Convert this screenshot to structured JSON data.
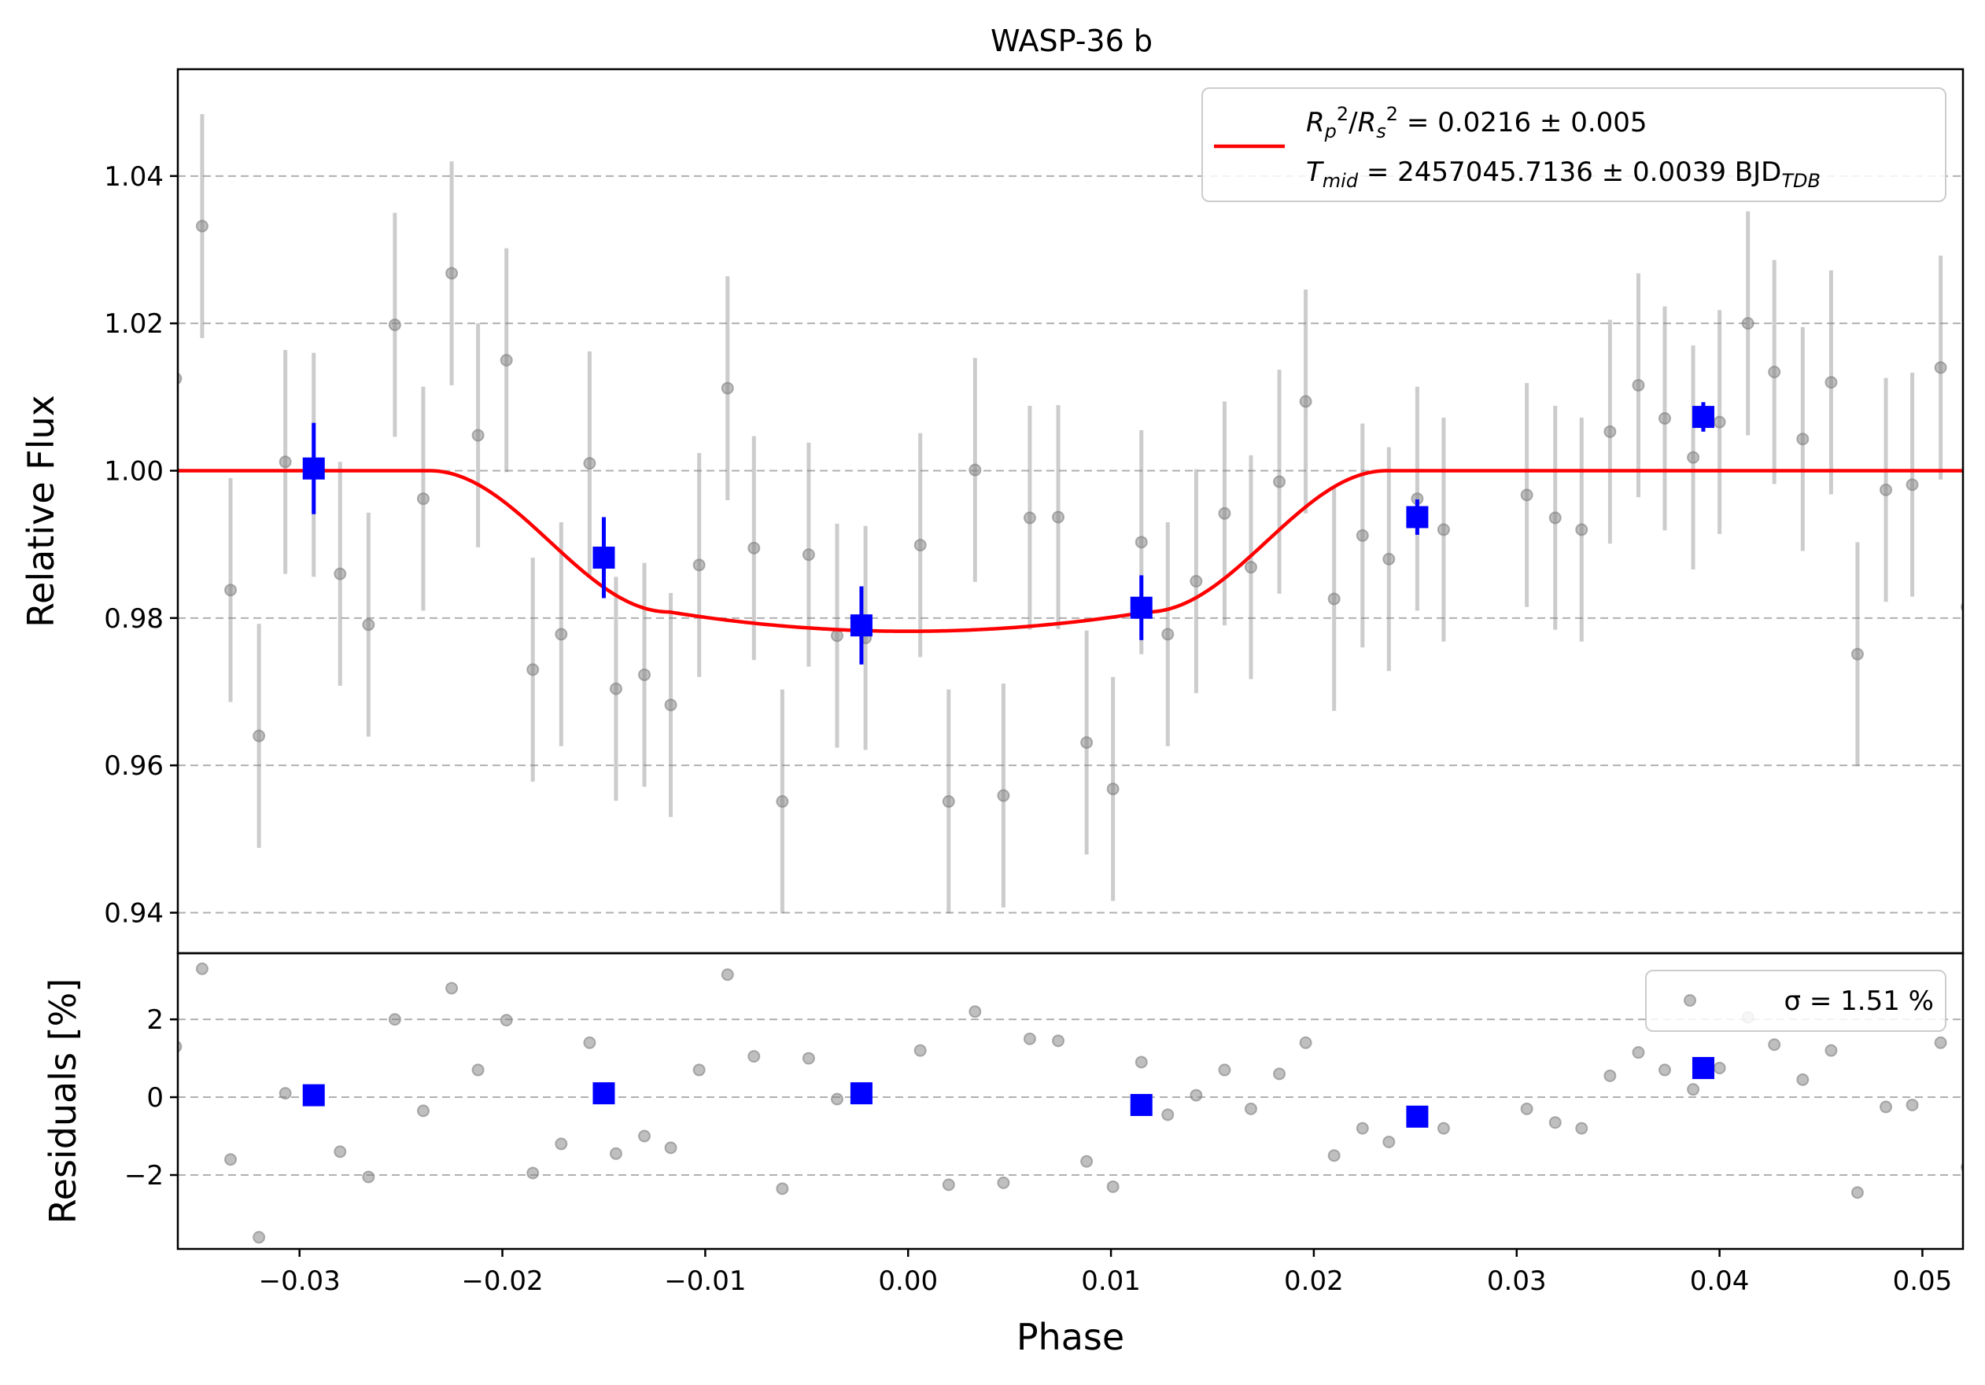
{
  "chart_data": [
    {
      "type": "scatter",
      "panel": "main",
      "title": "WASP-36 b",
      "ylabel": "Relative Flux",
      "xlim": [
        -0.036,
        0.052
      ],
      "ylim": [
        0.9345,
        1.0545
      ],
      "yticks": [
        0.94,
        0.96,
        0.98,
        1.0,
        1.02,
        1.04
      ],
      "ytick_labels": [
        "0.94",
        "0.96",
        "0.98",
        "1.00",
        "1.02",
        "1.04"
      ],
      "grid": "y dashed",
      "legend": {
        "placement": "top-right",
        "entries": [
          {
            "series": "model",
            "line1": "R_p^2/R_s^2 = 0.0216 ± 0.005",
            "line2": "T_mid = 2457045.7136 ± 0.0039 BJD_TDB"
          }
        ]
      },
      "model": {
        "color": "#ff0000",
        "depth": 0.0216,
        "t14": 0.0472,
        "t23": 0.0235,
        "baseline": 1.0,
        "min_flux": 0.9782
      },
      "raw_data": {
        "color": "#808080",
        "yerr": 0.0152,
        "points": [
          [
            -0.0361,
            1.0125
          ],
          [
            -0.0348,
            1.0332
          ],
          [
            -0.0334,
            0.9838
          ],
          [
            -0.032,
            0.964
          ],
          [
            -0.0307,
            1.0012
          ],
          [
            -0.0293,
            1.0008
          ],
          [
            -0.028,
            0.986
          ],
          [
            -0.0266,
            0.9791
          ],
          [
            -0.0253,
            1.0198
          ],
          [
            -0.0239,
            0.9962
          ],
          [
            -0.0225,
            1.0268
          ],
          [
            -0.0212,
            1.0048
          ],
          [
            -0.0198,
            1.015
          ],
          [
            -0.0185,
            0.973
          ],
          [
            -0.0171,
            0.9778
          ],
          [
            -0.0157,
            1.001
          ],
          [
            -0.0144,
            0.9704
          ],
          [
            -0.013,
            0.9723
          ],
          [
            -0.0117,
            0.9682
          ],
          [
            -0.0103,
            0.9872
          ],
          [
            -0.0089,
            1.0112
          ],
          [
            -0.0076,
            0.9895
          ],
          [
            -0.0062,
            0.9551
          ],
          [
            -0.0049,
            0.9886
          ],
          [
            -0.0035,
            0.9776
          ],
          [
            -0.0021,
            0.9773
          ],
          [
            0.0006,
            0.9899
          ],
          [
            0.002,
            0.9551
          ],
          [
            0.0033,
            1.0001
          ],
          [
            0.0047,
            0.9559
          ],
          [
            0.006,
            0.9936
          ],
          [
            0.0074,
            0.9937
          ],
          [
            0.0088,
            0.9631
          ],
          [
            0.0101,
            0.9568
          ],
          [
            0.0115,
            0.9903
          ],
          [
            0.0128,
            0.9778
          ],
          [
            0.0142,
            0.985
          ],
          [
            0.0156,
            0.9942
          ],
          [
            0.0169,
            0.9869
          ],
          [
            0.0183,
            0.9985
          ],
          [
            0.0196,
            1.0094
          ],
          [
            0.021,
            0.9826
          ],
          [
            0.0224,
            0.9912
          ],
          [
            0.0237,
            0.988
          ],
          [
            0.0251,
            0.9962
          ],
          [
            0.0264,
            0.992
          ],
          [
            0.0305,
            0.9967
          ],
          [
            0.0319,
            0.9936
          ],
          [
            0.0332,
            0.992
          ],
          [
            0.0346,
            1.0053
          ],
          [
            0.036,
            1.0116
          ],
          [
            0.0373,
            1.0071
          ],
          [
            0.0387,
            1.0018
          ],
          [
            0.04,
            1.0066
          ],
          [
            0.0414,
            1.02
          ],
          [
            0.0427,
            1.0134
          ],
          [
            0.0441,
            1.0043
          ],
          [
            0.0455,
            1.012
          ],
          [
            0.0468,
            0.9751
          ],
          [
            0.0482,
            0.9974
          ],
          [
            0.0495,
            0.9981
          ],
          [
            0.0509,
            1.014
          ],
          [
            0.0522,
            0.9815
          ]
        ]
      },
      "binned_data": {
        "color": "#0000ff",
        "points": [
          [
            -0.0293,
            1.0003,
            0.0062
          ],
          [
            -0.015,
            0.9882,
            0.0055
          ],
          [
            -0.0023,
            0.979,
            0.0053
          ],
          [
            0.0115,
            0.9814,
            0.0044
          ],
          [
            0.0251,
            0.9937,
            0.0024
          ],
          [
            0.0392,
            1.0073,
            0.002
          ]
        ]
      }
    },
    {
      "type": "scatter",
      "panel": "residuals",
      "xlabel": "Phase",
      "ylabel": "Residuals [%]",
      "xlim": [
        -0.036,
        0.052
      ],
      "ylim": [
        -3.9,
        3.7
      ],
      "xticks": [
        -0.03,
        -0.02,
        -0.01,
        0.0,
        0.01,
        0.02,
        0.03,
        0.04,
        0.05
      ],
      "xtick_labels": [
        "−0.03",
        "−0.02",
        "−0.01",
        "0.00",
        "0.01",
        "0.02",
        "0.03",
        "0.04",
        "0.05"
      ],
      "yticks": [
        -2,
        0,
        2
      ],
      "ytick_labels": [
        "−2",
        "0",
        "2"
      ],
      "grid": "y dashed",
      "legend": {
        "placement": "top-right",
        "label": "σ = 1.51 %"
      },
      "raw_data": {
        "color": "#808080",
        "points": [
          [
            -0.0361,
            1.3
          ],
          [
            -0.0348,
            3.3
          ],
          [
            -0.0334,
            -1.6
          ],
          [
            -0.032,
            -3.6
          ],
          [
            -0.0307,
            0.1
          ],
          [
            -0.028,
            -1.4
          ],
          [
            -0.0266,
            -2.05
          ],
          [
            -0.0253,
            2.0
          ],
          [
            -0.0239,
            -0.35
          ],
          [
            -0.0225,
            2.8
          ],
          [
            -0.0212,
            0.7
          ],
          [
            -0.0198,
            1.98
          ],
          [
            -0.0185,
            -1.95
          ],
          [
            -0.0171,
            -1.2
          ],
          [
            -0.0157,
            1.4
          ],
          [
            -0.0144,
            -1.45
          ],
          [
            -0.013,
            -1.0
          ],
          [
            -0.0117,
            -1.3
          ],
          [
            -0.0103,
            0.7
          ],
          [
            -0.0089,
            3.15
          ],
          [
            -0.0076,
            1.05
          ],
          [
            -0.0062,
            -2.35
          ],
          [
            -0.0049,
            1.0
          ],
          [
            -0.0035,
            -0.05
          ],
          [
            0.0006,
            1.2
          ],
          [
            0.002,
            -2.25
          ],
          [
            0.0033,
            2.2
          ],
          [
            0.0047,
            -2.2
          ],
          [
            0.006,
            1.5
          ],
          [
            0.0074,
            1.45
          ],
          [
            0.0088,
            -1.65
          ],
          [
            0.0101,
            -2.3
          ],
          [
            0.0115,
            0.9
          ],
          [
            0.0128,
            -0.45
          ],
          [
            0.0142,
            0.05
          ],
          [
            0.0156,
            0.7
          ],
          [
            0.0169,
            -0.3
          ],
          [
            0.0183,
            0.6
          ],
          [
            0.0196,
            1.4
          ],
          [
            0.021,
            -1.5
          ],
          [
            0.0224,
            -0.8
          ],
          [
            0.0237,
            -1.15
          ],
          [
            0.0264,
            -0.8
          ],
          [
            0.0305,
            -0.3
          ],
          [
            0.0319,
            -0.65
          ],
          [
            0.0332,
            -0.8
          ],
          [
            0.0346,
            0.55
          ],
          [
            0.036,
            1.15
          ],
          [
            0.0373,
            0.7
          ],
          [
            0.0387,
            0.2
          ],
          [
            0.04,
            0.75
          ],
          [
            0.0414,
            2.05
          ],
          [
            0.0427,
            1.35
          ],
          [
            0.0441,
            0.45
          ],
          [
            0.0455,
            1.2
          ],
          [
            0.0468,
            -2.45
          ],
          [
            0.0482,
            -0.25
          ],
          [
            0.0495,
            -0.2
          ],
          [
            0.0509,
            1.4
          ],
          [
            0.0522,
            -1.8
          ]
        ]
      },
      "binned_data": {
        "color": "#0000ff",
        "points": [
          [
            -0.0293,
            0.05
          ],
          [
            -0.015,
            0.1
          ],
          [
            -0.0023,
            0.1
          ],
          [
            0.0115,
            -0.2
          ],
          [
            0.0251,
            -0.5
          ],
          [
            0.0392,
            0.75
          ]
        ]
      }
    }
  ]
}
